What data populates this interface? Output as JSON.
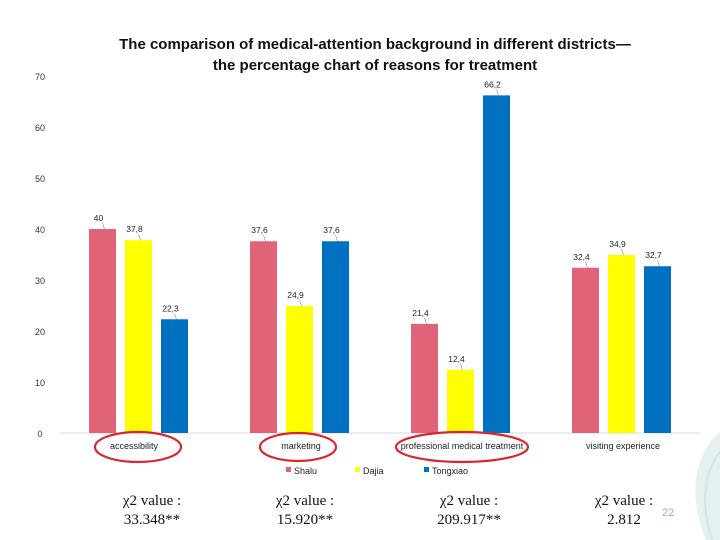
{
  "title_line1": "The comparison of medical-attention background in different districts—",
  "title_line2": "the percentage chart of  reasons for treatment",
  "chart_data": {
    "type": "bar",
    "categories": [
      "accessibility",
      "marketing",
      "professional medical treatment",
      "visiting experience"
    ],
    "series": [
      {
        "name": "Shalu",
        "color": "#e06377",
        "values": [
          40,
          37.6,
          21.4,
          32.4
        ]
      },
      {
        "name": "Dajia",
        "color": "#ffff00",
        "values": [
          37.8,
          24.9,
          12.4,
          34.9
        ]
      },
      {
        "name": "Tongxiao",
        "color": "#0070c0",
        "values": [
          22.3,
          37.6,
          66.2,
          32.7
        ]
      }
    ],
    "data_labels": [
      [
        "40",
        "37,6",
        "21,4",
        "32,4"
      ],
      [
        "37,8",
        "24,9",
        "12,4",
        "34,9"
      ],
      [
        "22,3",
        "37,6",
        "66,2",
        "32,7"
      ]
    ],
    "ylim": [
      0,
      70
    ],
    "yticks": [
      0,
      10,
      20,
      30,
      40,
      50,
      60,
      70
    ],
    "legend_position": "bottom",
    "circled_categories": [
      "accessibility",
      "marketing",
      "professional medical treatment"
    ],
    "circle_color": "#d9262c"
  },
  "chi_values": [
    "χ2 value :\n33.348**",
    "χ2 value :\n15.920**",
    "χ2 value :\n209.917**",
    "χ2 value :\n2.812"
  ],
  "page_number": "22"
}
